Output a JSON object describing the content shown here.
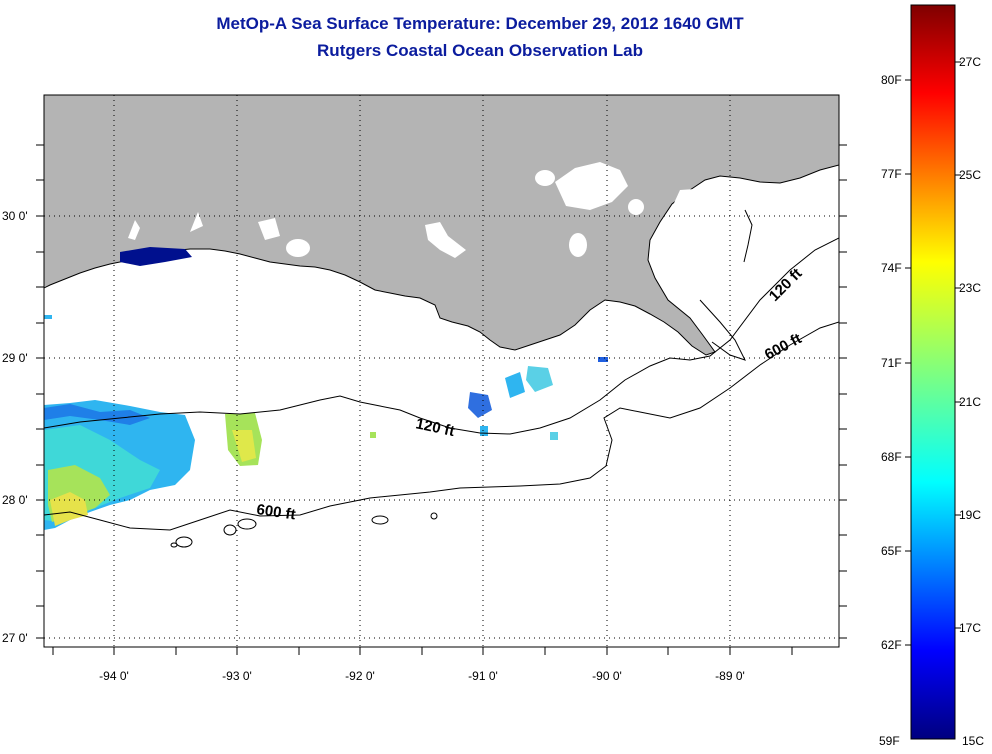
{
  "title": {
    "line1": "MetOp-A Sea Surface Temperature:  December 29, 2012 1640 GMT",
    "line2": "Rutgers Coastal Ocean Observation Lab"
  },
  "map": {
    "lat_labels": [
      "30 0'",
      "29 0'",
      "28 0'",
      "27 0'"
    ],
    "lon_labels": [
      "-94 0'",
      "-93 0'",
      "-92 0'",
      "-91 0'",
      "-90 0'",
      "-89 0'"
    ],
    "contours": [
      "120 ft",
      "600 ft",
      "120 ft",
      "600 ft"
    ],
    "land_color": "#b4b4b4",
    "grid": "dotted"
  },
  "colorbar": {
    "fahrenheit_labels": [
      "80F",
      "77F",
      "74F",
      "71F",
      "68F",
      "65F",
      "62F",
      "59F"
    ],
    "celsius_labels": [
      "27C",
      "25C",
      "23C",
      "21C",
      "19C",
      "17C",
      "15C"
    ],
    "colormap": "jet"
  }
}
